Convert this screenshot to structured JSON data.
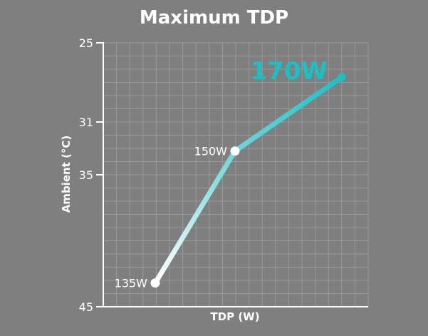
{
  "chart_data": {
    "type": "line",
    "title": "Maximum TDP",
    "xlabel": "TDP (W)",
    "ylabel": "Ambient (°C)",
    "y_ticks": [
      25,
      31,
      35,
      45
    ],
    "ylim": [
      25,
      45
    ],
    "y_inverted": true,
    "grid": true,
    "series": [
      {
        "values": [
          {
            "label": "135W",
            "y": 43.2
          },
          {
            "label": "150W",
            "y": 33.2
          },
          {
            "label": "170W",
            "y": 27.6
          }
        ]
      }
    ],
    "colors": {
      "line_start": "#ffffff",
      "line_end": "#16c2c6",
      "highlight": "#16c2c6",
      "grid": "#9a9a9a",
      "axis": "#ffffff"
    }
  }
}
